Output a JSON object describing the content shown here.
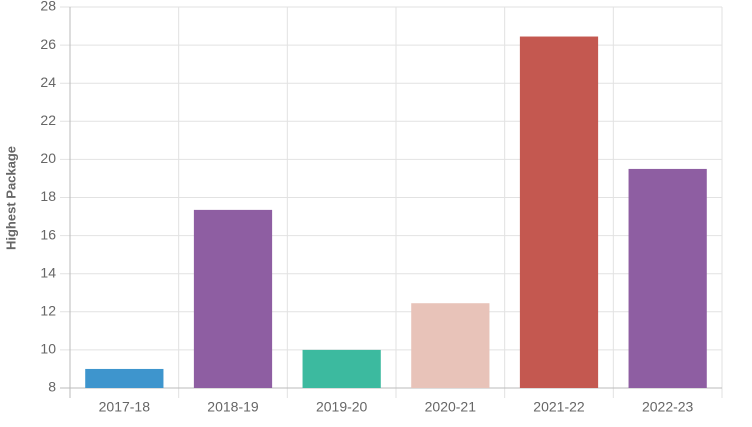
{
  "chart_data": {
    "type": "bar",
    "y_label": "Highest Package",
    "categories": [
      "2017-18",
      "2018-19",
      "2019-20",
      "2020-21",
      "2021-22",
      "2022-23"
    ],
    "values": [
      9,
      17.35,
      10,
      12.45,
      26.45,
      19.5
    ],
    "colors": [
      "#3e95cd",
      "#8e5ea2",
      "#3cba9f",
      "#e8c3b9",
      "#c45850",
      "#8e5ea2"
    ],
    "ylim": [
      8,
      28
    ],
    "yticks": [
      8,
      10,
      12,
      14,
      16,
      18,
      20,
      22,
      24,
      26,
      28
    ],
    "grid": true
  }
}
